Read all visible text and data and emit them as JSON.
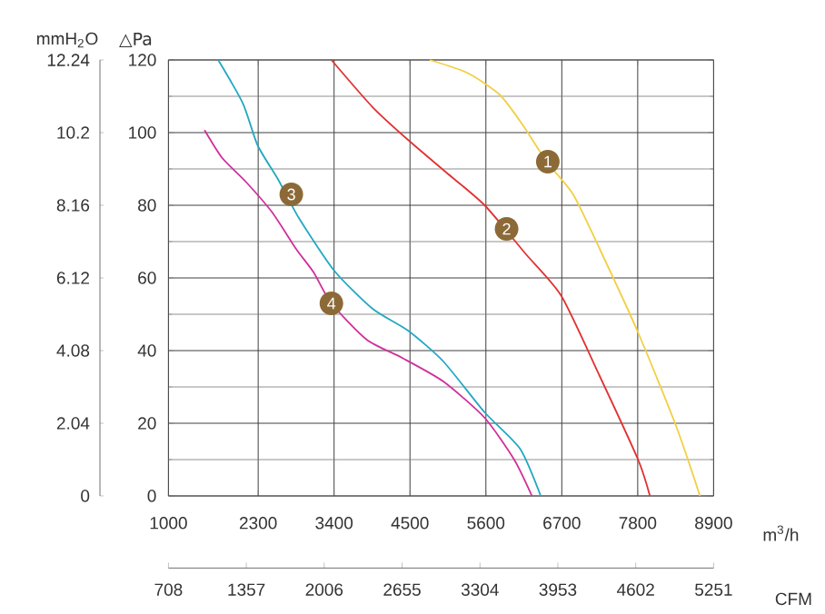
{
  "chart_data": {
    "type": "line",
    "xlabel": "m$^{3}$/h",
    "ylabel": "△Pa",
    "y2label": "mmH$_{2}$O",
    "x2label": "CFM",
    "xlim": [
      1000,
      8900
    ],
    "xticks": [
      1000,
      2300,
      3400,
      4500,
      5600,
      6700,
      7800,
      8900
    ],
    "x2lim": [
      708,
      5251
    ],
    "x2ticks": [
      708,
      1357,
      2006,
      2655,
      3304,
      3953,
      4602,
      5251
    ],
    "ylim": [
      0,
      120
    ],
    "yticks": [
      0,
      20,
      40,
      60,
      80,
      100,
      120
    ],
    "y2lim": [
      0,
      12.24
    ],
    "y2ticks": [
      0,
      2.04,
      4.08,
      6.12,
      8.16,
      10.2,
      12.24
    ],
    "grid": true,
    "series": [
      {
        "color": "#f2cf45",
        "x": [
          4787,
          5326,
          5797,
          6138,
          6480,
          6864,
          7249,
          7805,
          8361,
          8702
        ],
        "values": [
          120,
          116.5,
          110.5,
          102,
          92,
          83,
          68,
          45,
          19,
          0
        ]
      },
      {
        "color": "#e03232",
        "x": [
          3361,
          3959,
          4472,
          5028,
          5582,
          6182,
          6695,
          7249,
          7805,
          7977
        ],
        "values": [
          120,
          107,
          98,
          89,
          80,
          66.5,
          55,
          33,
          10,
          0
        ]
      },
      {
        "color": "#22a8c0",
        "x": [
          1721,
          2080,
          2292,
          2592,
          2890,
          3402,
          3959,
          4472,
          4984,
          5582,
          6095,
          6395
        ],
        "values": [
          120,
          108,
          96.5,
          87,
          76.5,
          62,
          51.5,
          45.5,
          37,
          23,
          13,
          0
        ]
      },
      {
        "color": "#d0309a",
        "x": [
          1523,
          1780,
          2120,
          2505,
          2849,
          3105,
          3361,
          3874,
          4387,
          4984,
          5582,
          6010,
          6267
        ],
        "values": [
          100.7,
          93,
          86.5,
          78,
          68,
          61.5,
          53,
          43,
          38,
          31.5,
          21.5,
          10,
          0
        ]
      }
    ],
    "annotations": [
      {
        "text": "1",
        "x": 6497,
        "y": 92
      },
      {
        "text": "2",
        "x": 5900,
        "y": 73.5
      },
      {
        "text": "3",
        "x": 2780,
        "y": 83
      },
      {
        "text": "4",
        "x": 3361,
        "y": 53
      }
    ]
  }
}
